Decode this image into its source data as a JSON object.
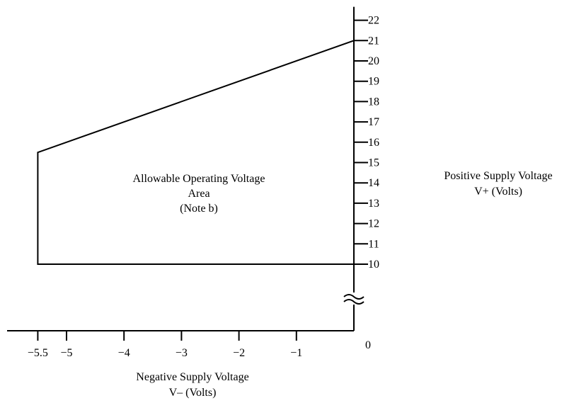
{
  "chart_data": {
    "type": "area",
    "title": "",
    "x_axis": {
      "label_line1": "Negative Supply Voltage",
      "label_line2": "V–  (Volts)",
      "range": [
        -5.5,
        0
      ],
      "ticks": [
        {
          "value": -5.5,
          "label": "−5.5"
        },
        {
          "value": -5,
          "label": "−5"
        },
        {
          "value": -4,
          "label": "−4"
        },
        {
          "value": -3,
          "label": "−3"
        },
        {
          "value": -2,
          "label": "−2"
        },
        {
          "value": -1,
          "label": "−1"
        }
      ],
      "zero_label": "0"
    },
    "y_axis": {
      "label_line1": "Positive Supply Voltage",
      "label_line2": "V+  (Volts)",
      "range": [
        10,
        22
      ],
      "broken_below": 10,
      "ticks": [
        {
          "value": 10,
          "label": "10"
        },
        {
          "value": 11,
          "label": "11"
        },
        {
          "value": 12,
          "label": "12"
        },
        {
          "value": 13,
          "label": "13"
        },
        {
          "value": 14,
          "label": "14"
        },
        {
          "value": 15,
          "label": "15"
        },
        {
          "value": 16,
          "label": "16"
        },
        {
          "value": 17,
          "label": "17"
        },
        {
          "value": 18,
          "label": "18"
        },
        {
          "value": 19,
          "label": "19"
        },
        {
          "value": 20,
          "label": "20"
        },
        {
          "value": 21,
          "label": "21"
        },
        {
          "value": 22,
          "label": "22"
        }
      ]
    },
    "region": {
      "label_line1": "Allowable Operating Voltage",
      "label_line2": "Area",
      "label_line3": "(Note b)",
      "vertices": [
        {
          "x": -5.5,
          "y": 10
        },
        {
          "x": -5.5,
          "y": 15.5
        },
        {
          "x": 0,
          "y": 21
        },
        {
          "x": 0,
          "y": 10
        }
      ]
    },
    "grid": false,
    "legend": "none"
  }
}
